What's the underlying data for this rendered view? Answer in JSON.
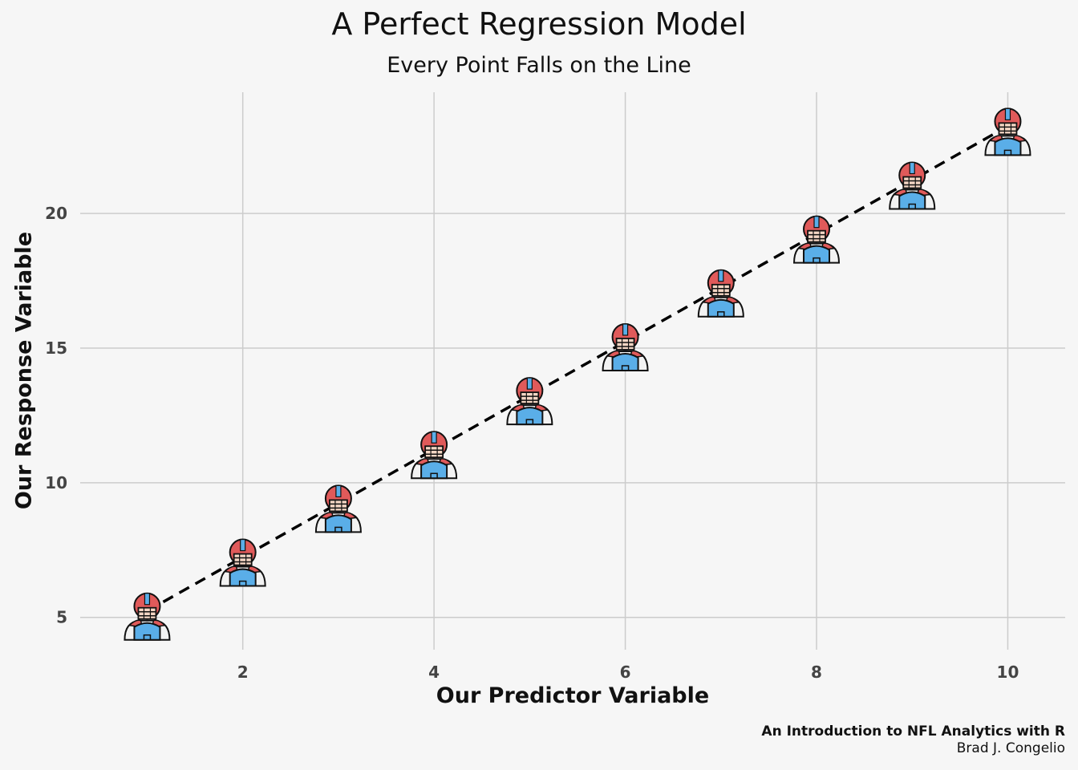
{
  "chart_data": {
    "type": "scatter",
    "title": "A Perfect Regression Model",
    "subtitle": "Every Point Falls on the Line",
    "xlabel": "Our Predictor Variable",
    "ylabel": "Our Response Variable",
    "x": [
      1,
      2,
      3,
      4,
      5,
      6,
      7,
      8,
      9,
      10
    ],
    "y": [
      5,
      7,
      9,
      11,
      13,
      15,
      17,
      19,
      21,
      23
    ],
    "xlim": [
      0.3,
      10.6
    ],
    "ylim": [
      3.8,
      24.5
    ],
    "xticks": [
      2,
      4,
      6,
      8,
      10
    ],
    "yticks": [
      5,
      10,
      15,
      20
    ],
    "fit_line": {
      "style": "dashed",
      "color": "#000000",
      "slope": 2,
      "intercept": 3
    },
    "marker": "football-player-icon",
    "grid": true,
    "legend": "none",
    "caption": [
      "An Introduction to NFL Analytics with R",
      "Brad J. Congelio"
    ]
  },
  "colors": {
    "background": "#f6f6f6",
    "grid": "#cccccc",
    "helmet": "#e05a5a",
    "jersey": "#5aaee8",
    "outline": "#111111"
  }
}
